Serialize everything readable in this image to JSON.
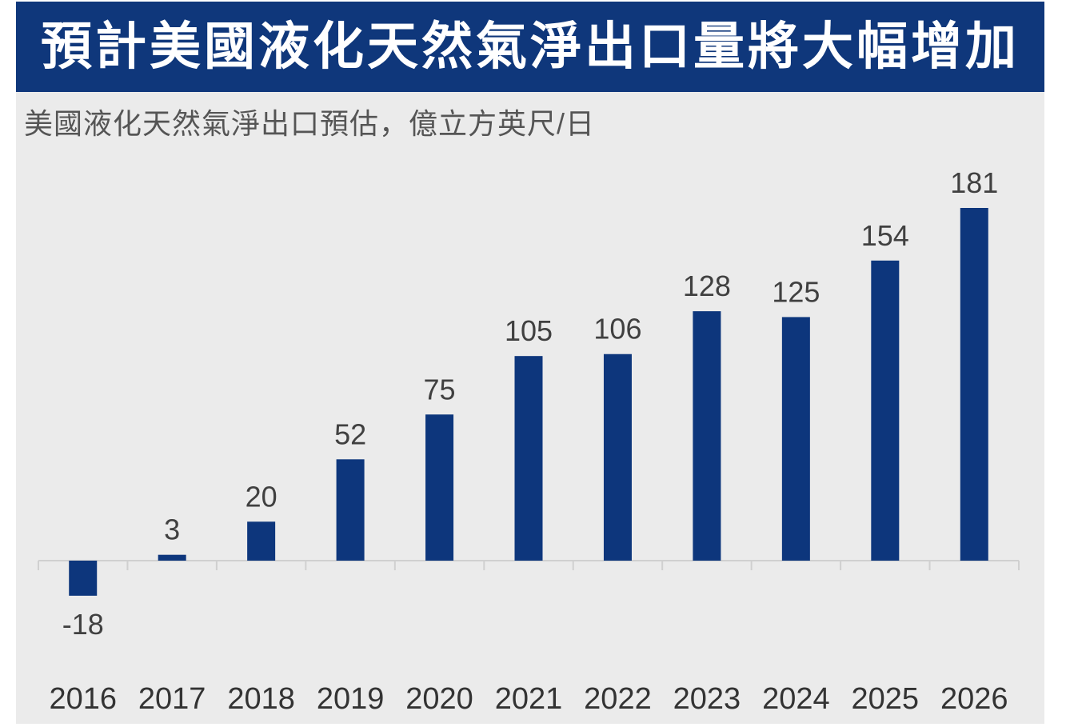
{
  "colors": {
    "banner": "#0f377b",
    "bar": "#0d367c",
    "panel": "#ebebeb",
    "axis": "#d0d0d0"
  },
  "chart_data": {
    "type": "bar",
    "title": "預計美國液化天然氣淨出口量將大幅增加",
    "subtitle": "美國液化天然氣淨出口預估，億立方英尺/日",
    "categories": [
      "2016",
      "2017",
      "2018",
      "2019",
      "2020",
      "2021",
      "2022",
      "2023",
      "2024",
      "2025",
      "2026"
    ],
    "values": [
      -18,
      3,
      20,
      52,
      75,
      105,
      106,
      128,
      125,
      154,
      181
    ],
    "grid": false
  }
}
